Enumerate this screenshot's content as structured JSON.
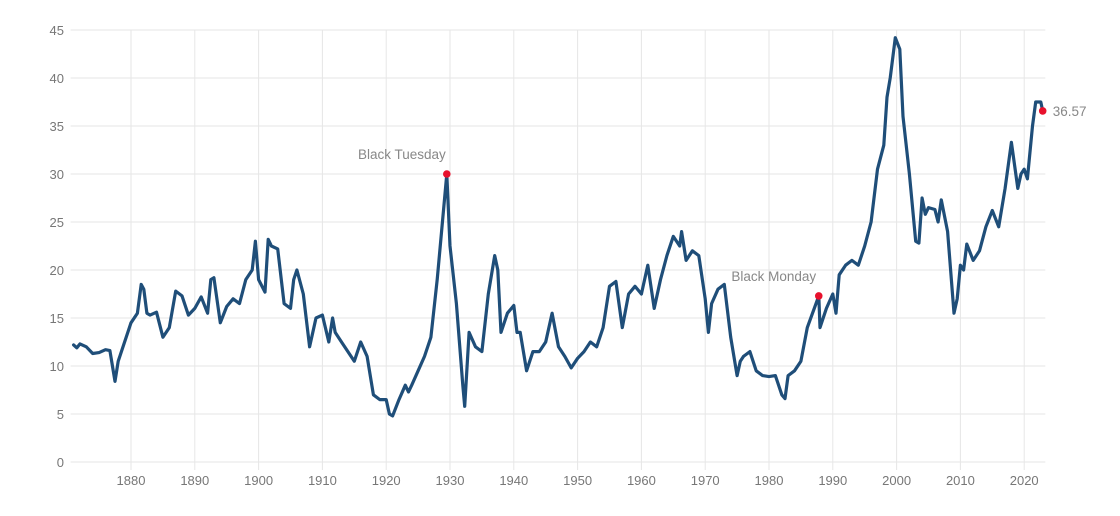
{
  "chart_data": {
    "type": "line",
    "title": "",
    "xlabel": "",
    "ylabel": "",
    "xlim": [
      1871,
      2023
    ],
    "ylim": [
      0,
      45
    ],
    "grid": true,
    "x_ticks": [
      "1880",
      "1890",
      "1900",
      "1910",
      "1920",
      "1930",
      "1940",
      "1950",
      "1960",
      "1970",
      "1980",
      "1990",
      "2000",
      "2010",
      "2020"
    ],
    "y_ticks": [
      "0",
      "5",
      "10",
      "15",
      "20",
      "25",
      "30",
      "35",
      "40",
      "45"
    ],
    "line_color": "#1f4e79",
    "marker_color": "#e8112d",
    "series": [
      {
        "x": [
          1871,
          1871.5,
          1872,
          1873,
          1874,
          1875,
          1876,
          1876.7,
          1877.5,
          1878,
          1879,
          1880,
          1881,
          1881.6,
          1882,
          1882.5,
          1883,
          1884,
          1885,
          1886,
          1887,
          1888,
          1889,
          1890,
          1891,
          1892,
          1892.5,
          1893,
          1894,
          1895,
          1896,
          1897,
          1898,
          1899,
          1899.5,
          1900,
          1901,
          1901.5,
          1902,
          1903,
          1904,
          1905,
          1905.5,
          1906,
          1907,
          1908,
          1909,
          1910,
          1911,
          1911.6,
          1912,
          1913,
          1914,
          1915,
          1916,
          1917,
          1918,
          1919,
          1920,
          1920.5,
          1921,
          1922,
          1923,
          1923.5,
          1924,
          1925,
          1926,
          1927,
          1928,
          1929.5,
          1930,
          1931,
          1932,
          1932.3,
          1933,
          1934,
          1935,
          1936,
          1937,
          1937.5,
          1938,
          1939,
          1940,
          1940.5,
          1941,
          1942,
          1943,
          1944,
          1945,
          1946,
          1947,
          1948,
          1949,
          1950,
          1951,
          1952,
          1953,
          1954,
          1955,
          1956,
          1957,
          1958,
          1959,
          1960,
          1961,
          1962,
          1963,
          1964,
          1965,
          1966,
          1966.3,
          1967,
          1968,
          1969,
          1970,
          1970.5,
          1971,
          1972,
          1973,
          1974,
          1975,
          1975.5,
          1976,
          1977,
          1978,
          1979,
          1980,
          1981,
          1982,
          1982.5,
          1983,
          1984,
          1985,
          1986,
          1987.8,
          1988,
          1989,
          1990,
          1990.5,
          1991,
          1992,
          1993,
          1994,
          1995,
          1996,
          1997,
          1998,
          1998.5,
          1999,
          1999.8,
          2000.5,
          2001,
          2002,
          2003,
          2003.5,
          2004,
          2004.5,
          2005,
          2006,
          2006.5,
          2007,
          2008,
          2009,
          2009.5,
          2010,
          2010.5,
          2011,
          2012,
          2013,
          2014,
          2015,
          2016,
          2017,
          2018,
          2019,
          2019.5,
          2020,
          2020.5,
          2021.3,
          2021.8,
          2022.6,
          2022.9
        ],
        "y": [
          12.2,
          11.9,
          12.3,
          12.0,
          11.3,
          11.4,
          11.7,
          11.6,
          8.4,
          10.5,
          12.5,
          14.5,
          15.5,
          18.5,
          18.0,
          15.5,
          15.3,
          15.6,
          13.0,
          14.0,
          17.8,
          17.3,
          15.3,
          16.0,
          17.2,
          15.5,
          19.0,
          19.2,
          14.5,
          16.2,
          17.0,
          16.5,
          19.0,
          20.0,
          23.0,
          19.0,
          17.7,
          23.2,
          22.5,
          22.2,
          16.5,
          16.0,
          19.0,
          20.0,
          17.5,
          12.0,
          15.0,
          15.3,
          12.5,
          15.0,
          13.5,
          12.5,
          11.5,
          10.5,
          12.5,
          11.0,
          7.0,
          6.5,
          6.5,
          5.0,
          4.8,
          6.5,
          8.0,
          7.3,
          8.0,
          9.5,
          11.0,
          13.0,
          19.0,
          30.0,
          22.5,
          16.5,
          8.0,
          5.8,
          13.5,
          12.0,
          11.5,
          17.5,
          21.5,
          20.0,
          13.5,
          15.5,
          16.3,
          13.5,
          13.5,
          9.5,
          11.5,
          11.5,
          12.5,
          15.5,
          12.0,
          11.0,
          9.8,
          10.8,
          11.5,
          12.5,
          12.0,
          14.0,
          18.3,
          18.8,
          14.0,
          17.5,
          18.3,
          17.5,
          20.5,
          16.0,
          19.0,
          21.5,
          23.5,
          22.5,
          24.0,
          21.0,
          22.0,
          21.5,
          17.0,
          13.5,
          16.5,
          18.0,
          18.5,
          13.0,
          9.0,
          10.5,
          11.0,
          11.5,
          9.5,
          9.0,
          8.9,
          9.0,
          7.0,
          6.6,
          9.0,
          9.5,
          10.5,
          14.0,
          17.3,
          14.0,
          16.0,
          17.5,
          15.5,
          19.5,
          20.5,
          21.0,
          20.5,
          22.5,
          25.0,
          30.5,
          33.0,
          38.0,
          40.0,
          44.2,
          43.0,
          36.0,
          30.0,
          23.0,
          22.8,
          27.5,
          25.8,
          26.5,
          26.3,
          25.0,
          27.3,
          24.0,
          15.5,
          17.0,
          20.5,
          20.0,
          22.7,
          21.0,
          22.0,
          24.5,
          26.2,
          24.5,
          28.5,
          33.3,
          28.5,
          30.0,
          30.5,
          29.5,
          35.0,
          37.5,
          37.5,
          36.57
        ]
      }
    ],
    "annotations": [
      {
        "label": "Black Tuesday",
        "x": 1929.5,
        "y": 30.0
      },
      {
        "label": "Black Monday",
        "x": 1987.8,
        "y": 17.3
      },
      {
        "label": "36.57",
        "x": 2022.9,
        "y": 36.57
      }
    ]
  }
}
